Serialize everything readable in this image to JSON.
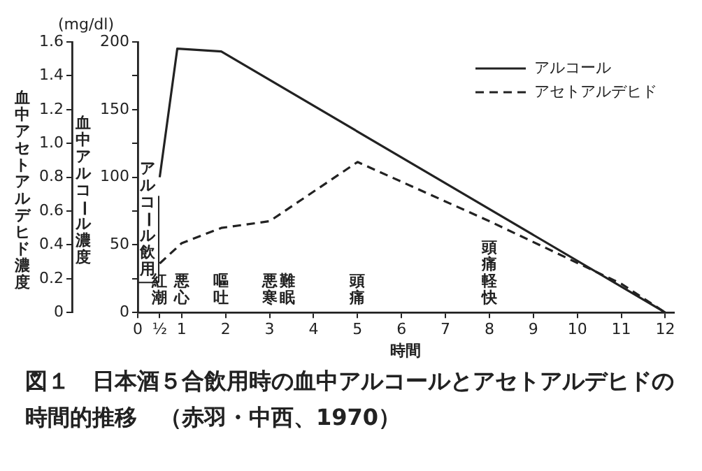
{
  "chart_data": {
    "type": "line",
    "title": "図１　日本酒５合飲用時の血中アルコールとアセトアルデヒドの時間的推移　（赤羽・中西、1970）",
    "xlabel": "時間",
    "ylabel": "血中アセトアルデヒド濃度",
    "y2label": "血中アルコール濃度",
    "xlim": [
      0,
      12.2
    ],
    "xticks": [
      0,
      {
        "value": 0.5,
        "label": "½"
      },
      1,
      2,
      3,
      4,
      5,
      6,
      7,
      8,
      9,
      10,
      11,
      12
    ],
    "ylim": [
      0,
      1.6
    ],
    "yticks": [
      0,
      0.2,
      0.4,
      0.6,
      0.8,
      {
        "value": 1,
        "label": "1.0"
      },
      1.2,
      1.4,
      1.6
    ],
    "y2lim": [
      0,
      200
    ],
    "y2ticks": [
      0,
      {
        "value": 25,
        "label": null
      },
      50,
      {
        "value": 75,
        "label": null
      },
      100,
      {
        "value": 125,
        "label": null
      },
      150,
      {
        "value": 175,
        "label": null
      },
      200
    ],
    "grid": false,
    "legend": "top right",
    "marker": "none",
    "series": [
      {
        "name": "アルコール",
        "color": "#222222",
        "axis": "y2",
        "line_style": "solid",
        "x": [
          0.5,
          0.9,
          1.9,
          12
        ],
        "values": [
          100,
          195,
          193,
          0
        ]
      },
      {
        "name": "アセトアルデヒド",
        "color": "#222222",
        "axis": "y",
        "line_style": "dashed",
        "x": [
          0.5,
          1,
          1.9,
          3,
          5,
          8,
          11,
          12
        ],
        "values": [
          0.29,
          0.41,
          0.5,
          0.54,
          0.89,
          0.54,
          0.17,
          0
        ]
      }
    ],
    "annotations": [
      "(mg/dl)",
      "アルコール飲用",
      "紅潮",
      "悪心",
      "嘔吐",
      "悪寒",
      "難眠",
      "頭痛",
      "頭痛軽快"
    ]
  }
}
